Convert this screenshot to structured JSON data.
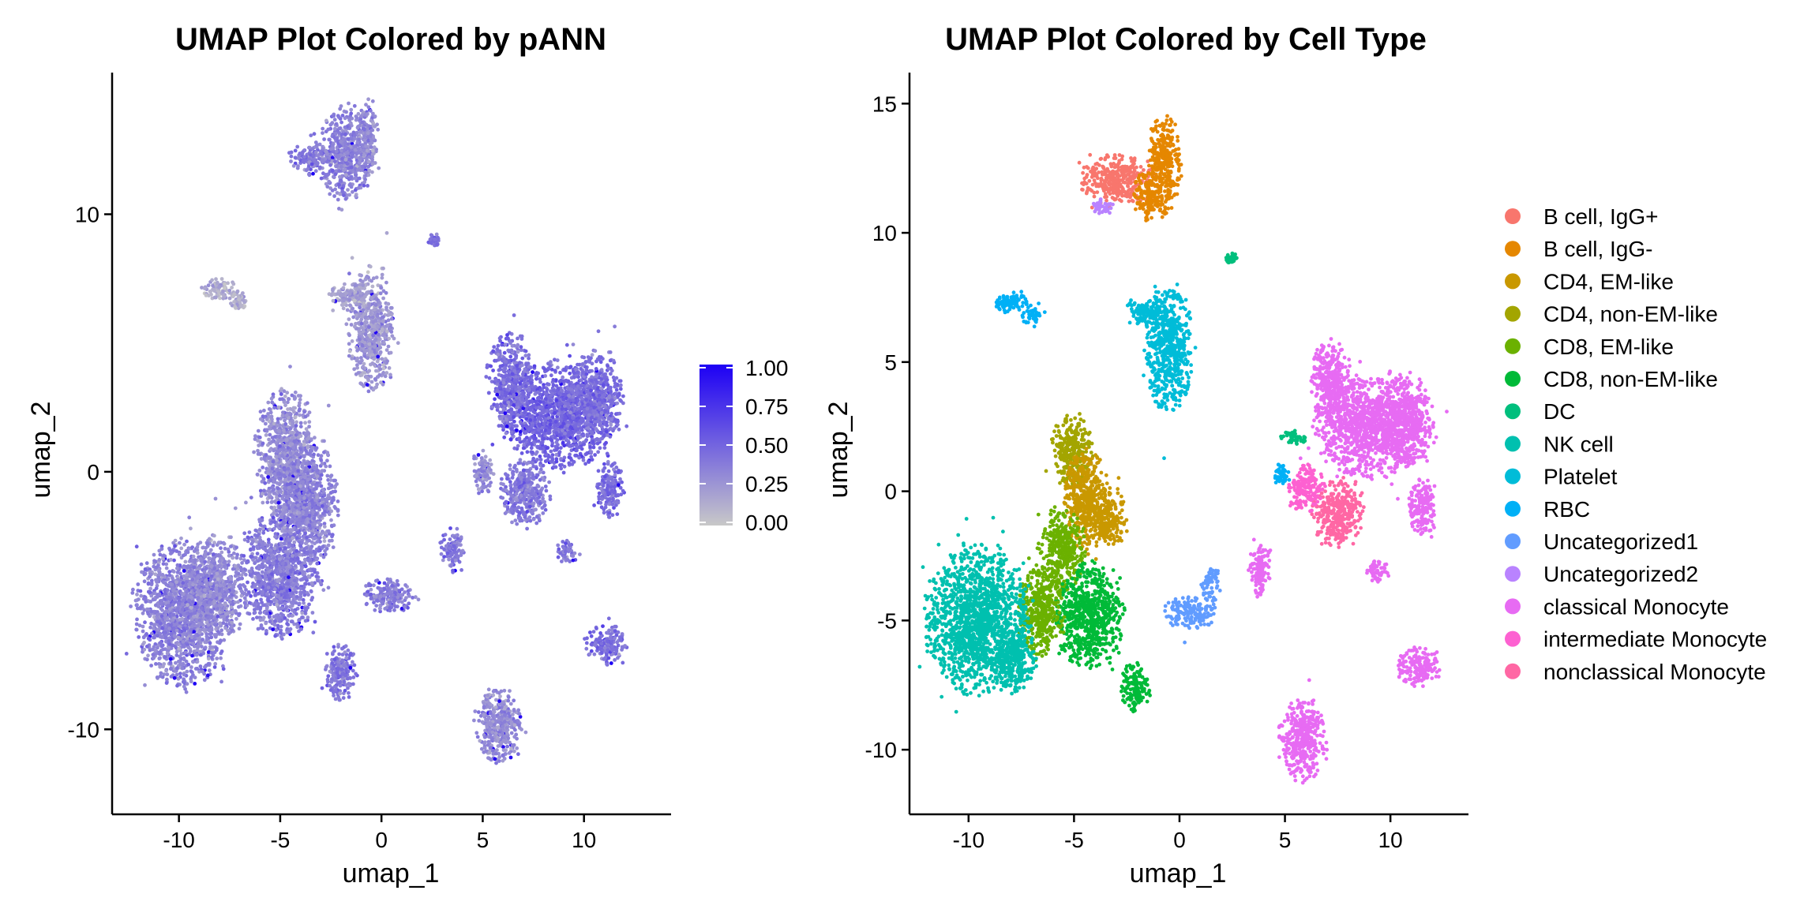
{
  "chart_data": [
    {
      "type": "scatter",
      "title": "UMAP Plot Colored by pANN",
      "xlabel": "umap_1",
      "ylabel": "umap_2",
      "xlim": [
        -13.3,
        14.3
      ],
      "ylim": [
        -13.3,
        15.5
      ],
      "x_ticks": [
        -10,
        -5,
        0,
        5,
        10
      ],
      "y_ticks": [
        -10,
        0,
        10
      ],
      "x_tick_labels": [
        "-10",
        "-5",
        "0",
        "5",
        "10"
      ],
      "y_tick_labels": [
        "-10",
        "0",
        "10"
      ],
      "grid": false,
      "color_scale": {
        "name": "",
        "min": 0.0,
        "max": 1.0,
        "low_color": "#c8c8c8",
        "high_color": "#1d00f5",
        "ticks": [
          1.0,
          0.75,
          0.5,
          0.25,
          0.0
        ],
        "tick_labels": [
          "1.00",
          "0.75",
          "0.50",
          "0.25",
          "0.00"
        ],
        "placement": "right"
      },
      "clusters": [
        {
          "cx": -1.8,
          "cy": 12.3,
          "rx": 1.2,
          "ry": 1.6,
          "value": 0.35
        },
        {
          "cx": -0.7,
          "cy": 13.0,
          "rx": 0.5,
          "ry": 1.4,
          "value": 0.3
        },
        {
          "cx": -3.6,
          "cy": 12.2,
          "rx": 0.8,
          "ry": 0.6,
          "value": 0.4
        },
        {
          "cx": -0.5,
          "cy": 5.5,
          "rx": 1.0,
          "ry": 2.2,
          "value": 0.25
        },
        {
          "cx": -1.5,
          "cy": 6.8,
          "rx": 1.0,
          "ry": 0.5,
          "value": 0.2
        },
        {
          "cx": -8.0,
          "cy": 7.1,
          "rx": 0.8,
          "ry": 0.4,
          "value": 0.15
        },
        {
          "cx": -7.0,
          "cy": 6.6,
          "rx": 0.4,
          "ry": 0.4,
          "value": 0.15
        },
        {
          "cx": -4.7,
          "cy": 0.5,
          "rx": 1.3,
          "ry": 2.5,
          "value": 0.3
        },
        {
          "cx": -3.6,
          "cy": -1.2,
          "rx": 1.3,
          "ry": 2.2,
          "value": 0.35
        },
        {
          "cx": -5.0,
          "cy": -4.0,
          "rx": 1.8,
          "ry": 2.2,
          "value": 0.38
        },
        {
          "cx": -9.8,
          "cy": -5.5,
          "rx": 2.1,
          "ry": 2.6,
          "value": 0.35
        },
        {
          "cx": -8.2,
          "cy": -4.5,
          "rx": 1.3,
          "ry": 1.8,
          "value": 0.32
        },
        {
          "cx": -2.0,
          "cy": -7.8,
          "rx": 0.7,
          "ry": 1.0,
          "value": 0.4
        },
        {
          "cx": 0.4,
          "cy": -4.8,
          "rx": 1.2,
          "ry": 0.6,
          "value": 0.38
        },
        {
          "cx": 3.5,
          "cy": -3.0,
          "rx": 0.5,
          "ry": 0.8,
          "value": 0.4
        },
        {
          "cx": 8.8,
          "cy": 2.2,
          "rx": 2.5,
          "ry": 1.9,
          "value": 0.5
        },
        {
          "cx": 6.4,
          "cy": 3.5,
          "rx": 1.0,
          "ry": 1.8,
          "value": 0.45
        },
        {
          "cx": 10.6,
          "cy": 2.9,
          "rx": 1.2,
          "ry": 1.6,
          "value": 0.45
        },
        {
          "cx": 7.1,
          "cy": -0.8,
          "rx": 1.1,
          "ry": 1.2,
          "value": 0.4
        },
        {
          "cx": 11.3,
          "cy": -0.7,
          "rx": 0.6,
          "ry": 1.0,
          "value": 0.45
        },
        {
          "cx": 5.0,
          "cy": 0.0,
          "rx": 0.5,
          "ry": 0.8,
          "value": 0.3
        },
        {
          "cx": 9.2,
          "cy": -3.1,
          "rx": 0.5,
          "ry": 0.4,
          "value": 0.4
        },
        {
          "cx": 11.1,
          "cy": -6.7,
          "rx": 0.9,
          "ry": 0.7,
          "value": 0.45
        },
        {
          "cx": 5.8,
          "cy": -9.8,
          "rx": 1.0,
          "ry": 1.4,
          "value": 0.3
        },
        {
          "cx": 2.6,
          "cy": 9.0,
          "rx": 0.25,
          "ry": 0.2,
          "value": 0.45
        }
      ]
    },
    {
      "type": "scatter",
      "title": "UMAP Plot Colored by Cell Type",
      "xlabel": "umap_1",
      "ylabel": "umap_2",
      "xlim": [
        -12.8,
        13.7
      ],
      "ylim": [
        -12.5,
        16.2
      ],
      "x_ticks": [
        -10,
        -5,
        0,
        5,
        10
      ],
      "y_ticks": [
        -10,
        -5,
        0,
        5,
        10,
        15
      ],
      "x_tick_labels": [
        "-10",
        "-5",
        "0",
        "5",
        "10"
      ],
      "y_tick_labels": [
        "-10",
        "-5",
        "0",
        "5",
        "10",
        "15"
      ],
      "grid": false,
      "legend": {
        "placement": "right",
        "entries": [
          {
            "name": "B cell, IgG+",
            "color": "#F8766D"
          },
          {
            "name": "B cell, IgG-",
            "color": "#E58700"
          },
          {
            "name": "CD4, EM-like",
            "color": "#C99800"
          },
          {
            "name": "CD4, non-EM-like",
            "color": "#A3A500"
          },
          {
            "name": "CD8, EM-like",
            "color": "#6BB100"
          },
          {
            "name": "CD8, non-EM-like",
            "color": "#00BA38"
          },
          {
            "name": "DC",
            "color": "#00BF7D"
          },
          {
            "name": "NK cell",
            "color": "#00C0AF"
          },
          {
            "name": "Platelet",
            "color": "#00BCD8"
          },
          {
            "name": "RBC",
            "color": "#00B0F6"
          },
          {
            "name": "Uncategorized1",
            "color": "#619CFF"
          },
          {
            "name": "Uncategorized2",
            "color": "#B983FF"
          },
          {
            "name": "classical Monocyte",
            "color": "#E76BF3"
          },
          {
            "name": "intermediate Monocyte",
            "color": "#FD61D1"
          },
          {
            "name": "nonclassical Monocyte",
            "color": "#FF67A4"
          }
        ]
      },
      "clusters": [
        {
          "cx": -3.0,
          "cy": 12.0,
          "rx": 1.5,
          "ry": 0.9,
          "type": 0
        },
        {
          "cx": -0.7,
          "cy": 12.6,
          "rx": 0.7,
          "ry": 1.8,
          "type": 1
        },
        {
          "cx": -1.5,
          "cy": 11.4,
          "rx": 0.6,
          "ry": 0.9,
          "type": 1
        },
        {
          "cx": -3.7,
          "cy": 11.0,
          "rx": 0.5,
          "ry": 0.3,
          "type": 11
        },
        {
          "cx": -0.5,
          "cy": 5.5,
          "rx": 1.0,
          "ry": 2.2,
          "type": 8
        },
        {
          "cx": -1.5,
          "cy": 6.9,
          "rx": 1.0,
          "ry": 0.5,
          "type": 8
        },
        {
          "cx": -8.0,
          "cy": 7.3,
          "rx": 0.8,
          "ry": 0.4,
          "type": 9
        },
        {
          "cx": -7.0,
          "cy": 6.8,
          "rx": 0.4,
          "ry": 0.4,
          "type": 9
        },
        {
          "cx": -5.1,
          "cy": 1.6,
          "rx": 0.9,
          "ry": 1.2,
          "type": 3
        },
        {
          "cx": -4.4,
          "cy": -0.4,
          "rx": 1.0,
          "ry": 1.8,
          "type": 2
        },
        {
          "cx": -3.3,
          "cy": -1.0,
          "rx": 0.7,
          "ry": 1.0,
          "type": 2
        },
        {
          "cx": -5.6,
          "cy": -2.3,
          "rx": 1.0,
          "ry": 1.4,
          "type": 4
        },
        {
          "cx": -4.3,
          "cy": -4.8,
          "rx": 1.5,
          "ry": 1.8,
          "type": 5
        },
        {
          "cx": -6.6,
          "cy": -4.6,
          "rx": 1.0,
          "ry": 1.6,
          "type": 4
        },
        {
          "cx": -9.6,
          "cy": -5.0,
          "rx": 2.2,
          "ry": 2.6,
          "type": 7
        },
        {
          "cx": -7.8,
          "cy": -6.5,
          "rx": 0.9,
          "ry": 1.2,
          "type": 7
        },
        {
          "cx": -2.1,
          "cy": -7.6,
          "rx": 0.6,
          "ry": 0.9,
          "type": 5
        },
        {
          "cx": 0.5,
          "cy": -4.7,
          "rx": 1.1,
          "ry": 0.6,
          "type": 10
        },
        {
          "cx": 1.5,
          "cy": -3.6,
          "rx": 0.4,
          "ry": 0.6,
          "type": 10
        },
        {
          "cx": 9.0,
          "cy": 2.5,
          "rx": 2.4,
          "ry": 1.8,
          "type": 12
        },
        {
          "cx": 7.2,
          "cy": 4.3,
          "rx": 0.9,
          "ry": 1.4,
          "type": 12
        },
        {
          "cx": 10.8,
          "cy": 2.7,
          "rx": 1.1,
          "ry": 1.5,
          "type": 12
        },
        {
          "cx": 7.5,
          "cy": -0.8,
          "rx": 1.1,
          "ry": 1.2,
          "type": 14
        },
        {
          "cx": 6.0,
          "cy": 0.1,
          "rx": 0.8,
          "ry": 0.8,
          "type": 13
        },
        {
          "cx": 5.5,
          "cy": 2.1,
          "rx": 0.7,
          "ry": 0.25,
          "type": 6
        },
        {
          "cx": 4.8,
          "cy": 0.6,
          "rx": 0.4,
          "ry": 0.4,
          "type": 9
        },
        {
          "cx": 11.5,
          "cy": -0.6,
          "rx": 0.6,
          "ry": 1.0,
          "type": 12
        },
        {
          "cx": 9.4,
          "cy": -3.1,
          "rx": 0.5,
          "ry": 0.4,
          "type": 12
        },
        {
          "cx": 3.8,
          "cy": -3.0,
          "rx": 0.5,
          "ry": 0.9,
          "type": 12
        },
        {
          "cx": 11.3,
          "cy": -6.8,
          "rx": 0.9,
          "ry": 0.7,
          "type": 12
        },
        {
          "cx": 5.8,
          "cy": -9.6,
          "rx": 1.0,
          "ry": 1.5,
          "type": 12
        },
        {
          "cx": 2.5,
          "cy": 9.0,
          "rx": 0.25,
          "ry": 0.2,
          "type": 6
        }
      ]
    }
  ]
}
